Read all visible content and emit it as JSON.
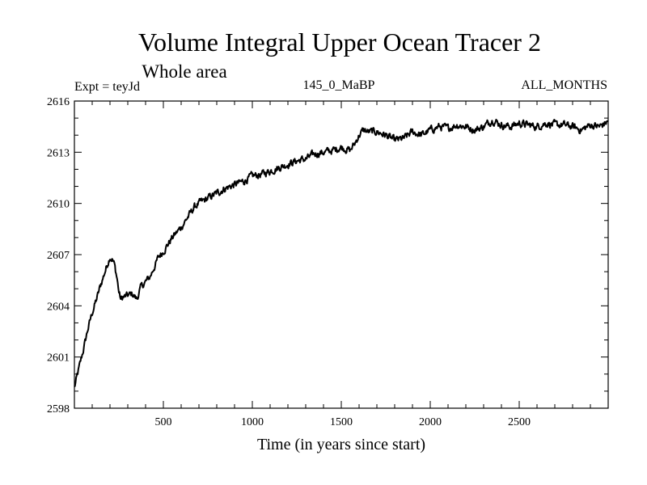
{
  "chart_data": {
    "type": "line",
    "title": "Volume Integral Upper Ocean Tracer 2",
    "subtitle": "Whole area",
    "experiment_label": "Expt = teyJd",
    "period_label": "145_0_MaBP",
    "months_label": "ALL_MONTHS",
    "xlabel": "Time (in years since start)",
    "ylabel": "",
    "xlim": [
      0,
      3000
    ],
    "ylim": [
      2598,
      2616
    ],
    "x_ticks": [
      500,
      1000,
      1500,
      2000,
      2500
    ],
    "y_ticks": [
      2598,
      2601,
      2604,
      2607,
      2610,
      2613,
      2616
    ],
    "grid": false,
    "series": [
      {
        "name": "Volume Integral Upper Ocean Tracer 2",
        "color": "#000000",
        "x": [
          0,
          25,
          50,
          75,
          100,
          125,
          150,
          175,
          200,
          215,
          225,
          240,
          250,
          260,
          275,
          300,
          325,
          350,
          375,
          400,
          425,
          450,
          475,
          500,
          525,
          550,
          575,
          600,
          625,
          650,
          675,
          700,
          750,
          800,
          850,
          900,
          950,
          1000,
          1050,
          1100,
          1150,
          1200,
          1250,
          1300,
          1350,
          1400,
          1450,
          1500,
          1550,
          1575,
          1600,
          1625,
          1650,
          1700,
          1750,
          1800,
          1850,
          1900,
          1950,
          2000,
          2050,
          2100,
          2150,
          2200,
          2250,
          2300,
          2350,
          2400,
          2450,
          2500,
          2550,
          2600,
          2650,
          2700,
          2750,
          2800,
          2850,
          2900,
          2950,
          3000
        ],
        "values": [
          2599.2,
          2600.3,
          2601.4,
          2602.6,
          2603.6,
          2604.4,
          2605.3,
          2606.1,
          2606.9,
          2606.7,
          2606.4,
          2605.6,
          2604.8,
          2604.4,
          2604.5,
          2604.6,
          2604.7,
          2604.4,
          2605.1,
          2605.4,
          2605.7,
          2606.3,
          2606.9,
          2607.2,
          2607.6,
          2608.0,
          2608.3,
          2608.6,
          2609.0,
          2609.4,
          2609.8,
          2610.0,
          2610.3,
          2610.6,
          2610.9,
          2611.1,
          2611.3,
          2611.6,
          2611.7,
          2611.9,
          2612.1,
          2612.3,
          2612.5,
          2612.6,
          2612.9,
          2613.0,
          2613.1,
          2613.3,
          2613.1,
          2613.5,
          2614.0,
          2614.3,
          2614.2,
          2614.2,
          2614.0,
          2613.7,
          2613.8,
          2614.2,
          2614.0,
          2614.3,
          2614.5,
          2614.4,
          2614.6,
          2614.5,
          2614.3,
          2614.5,
          2614.9,
          2614.6,
          2614.5,
          2614.7,
          2614.6,
          2614.5,
          2614.7,
          2614.6,
          2614.6,
          2614.5,
          2614.3,
          2614.6,
          2614.5,
          2614.8
        ]
      }
    ]
  }
}
